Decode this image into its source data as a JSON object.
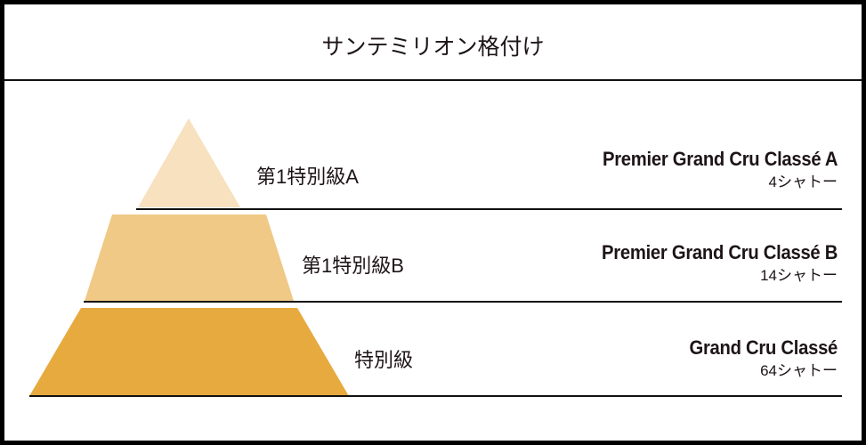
{
  "title": "サンテミリオン格付け",
  "colors": {
    "tier1": "#f7e1be",
    "tier2": "#efc985",
    "tier3": "#e7aa3f"
  },
  "tiers": [
    {
      "jp_label": "第1特別級A",
      "en_label": "Premier Grand Cru Classé A",
      "count": "4シャトー"
    },
    {
      "jp_label": "第1特別級B",
      "en_label": "Premier Grand Cru Classé B",
      "count": "14シャトー"
    },
    {
      "jp_label": "特別級",
      "en_label": "Grand Cru Classé",
      "count": "64シャトー"
    }
  ]
}
